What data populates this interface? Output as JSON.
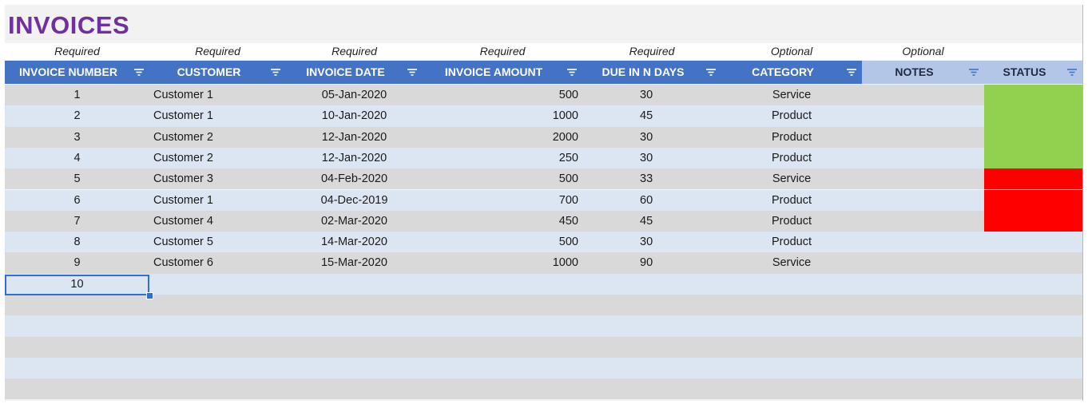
{
  "title": "INVOICES",
  "requirements": [
    "Required",
    "Required",
    "Required",
    "Required",
    "Required",
    "Optional",
    "Optional"
  ],
  "columns": [
    "INVOICE NUMBER",
    "CUSTOMER",
    "INVOICE DATE",
    "INVOICE AMOUNT",
    "DUE IN N DAYS",
    "CATEGORY",
    "NOTES",
    "STATUS"
  ],
  "rows": [
    {
      "num": "1",
      "customer": "Customer 1",
      "date": "05-Jan-2020",
      "amount": "500",
      "due": "30",
      "category": "Service",
      "status_color": "#92d050"
    },
    {
      "num": "2",
      "customer": "Customer 1",
      "date": "10-Jan-2020",
      "amount": "1000",
      "due": "45",
      "category": "Product",
      "status_color": "#92d050"
    },
    {
      "num": "3",
      "customer": "Customer 2",
      "date": "12-Jan-2020",
      "amount": "2000",
      "due": "30",
      "category": "Product",
      "status_color": "#92d050"
    },
    {
      "num": "4",
      "customer": "Customer 2",
      "date": "12-Jan-2020",
      "amount": "250",
      "due": "30",
      "category": "Product",
      "status_color": "#92d050"
    },
    {
      "num": "5",
      "customer": "Customer 3",
      "date": "04-Feb-2020",
      "amount": "500",
      "due": "33",
      "category": "Service",
      "status_color": "#ff0000"
    },
    {
      "num": "6",
      "customer": "Customer 1",
      "date": "04-Dec-2019",
      "amount": "700",
      "due": "60",
      "category": "Product",
      "status_color": "#ff0000"
    },
    {
      "num": "7",
      "customer": "Customer 4",
      "date": "02-Mar-2020",
      "amount": "450",
      "due": "45",
      "category": "Product",
      "status_color": "#ff0000"
    },
    {
      "num": "8",
      "customer": "Customer 5",
      "date": "14-Mar-2020",
      "amount": "500",
      "due": "30",
      "category": "Product",
      "status_color": ""
    },
    {
      "num": "9",
      "customer": "Customer 6",
      "date": "15-Mar-2020",
      "amount": "1000",
      "due": "90",
      "category": "Service",
      "status_color": ""
    },
    {
      "num": "10",
      "customer": "",
      "date": "",
      "amount": "",
      "due": "",
      "category": "",
      "status_color": ""
    },
    {
      "num": "",
      "customer": "",
      "date": "",
      "amount": "",
      "due": "",
      "category": "",
      "status_color": ""
    },
    {
      "num": "",
      "customer": "",
      "date": "",
      "amount": "",
      "due": "",
      "category": "",
      "status_color": ""
    },
    {
      "num": "",
      "customer": "",
      "date": "",
      "amount": "",
      "due": "",
      "category": "",
      "status_color": ""
    },
    {
      "num": "",
      "customer": "",
      "date": "",
      "amount": "",
      "due": "",
      "category": "",
      "status_color": ""
    },
    {
      "num": "",
      "customer": "",
      "date": "",
      "amount": "",
      "due": "",
      "category": "",
      "status_color": ""
    }
  ],
  "selected_cell": "10",
  "colors": {
    "title": "#7030a0",
    "header_blue": "#4472c4",
    "header_light": "#b4c6e7",
    "row_gray": "#d9d9d9",
    "row_blue": "#dce6f2",
    "status_green": "#92d050",
    "status_red": "#ff0000",
    "selection": "#2e6fd6"
  },
  "icons": {
    "filter": "filter-icon"
  }
}
